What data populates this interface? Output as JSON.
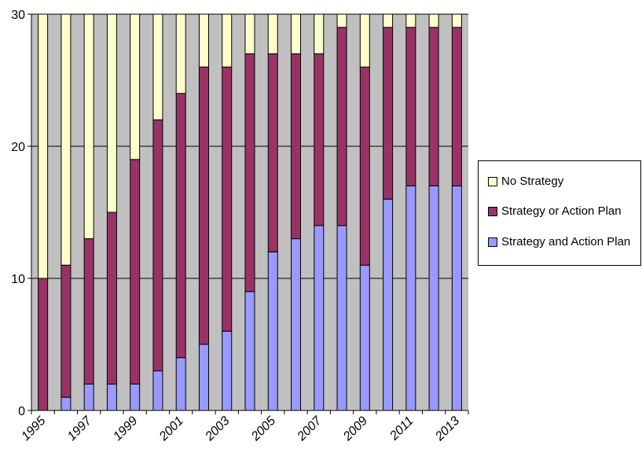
{
  "chart_data": {
    "type": "bar",
    "stacked": true,
    "years": [
      "1995",
      "1996",
      "1997",
      "1998",
      "1999",
      "2000",
      "2001",
      "2002",
      "2003",
      "2004",
      "2005",
      "2006",
      "2007",
      "2008",
      "2009",
      "2010",
      "2011",
      "2012",
      "2013"
    ],
    "tick_labels": [
      "1995",
      "1997",
      "1999",
      "2001",
      "2003",
      "2005",
      "2007",
      "2009",
      "2011",
      "2013"
    ],
    "ylim": [
      0,
      30
    ],
    "yticks": [
      "0",
      "10",
      "20",
      "30"
    ],
    "grid": true,
    "legend_position": "right",
    "series": [
      {
        "name": "Strategy and Action Plan",
        "color": "#9999ff",
        "values": [
          0,
          1,
          2,
          2,
          2,
          3,
          4,
          5,
          6,
          9,
          12,
          13,
          14,
          14,
          11,
          16,
          17,
          17,
          17
        ]
      },
      {
        "name": "Strategy or Action Plan",
        "color": "#993366",
        "values": [
          10,
          10,
          11,
          13,
          17,
          19,
          20,
          21,
          20,
          18,
          15,
          14,
          13,
          15,
          15,
          13,
          12,
          12,
          12
        ]
      },
      {
        "name": "No Strategy",
        "color": "#ffffcc",
        "values": [
          20,
          19,
          17,
          15,
          11,
          8,
          6,
          4,
          4,
          3,
          3,
          3,
          3,
          1,
          4,
          1,
          1,
          1,
          1
        ]
      }
    ],
    "legend_order": [
      "No Strategy",
      "Strategy or Action Plan",
      "Strategy and Action Plan"
    ]
  }
}
